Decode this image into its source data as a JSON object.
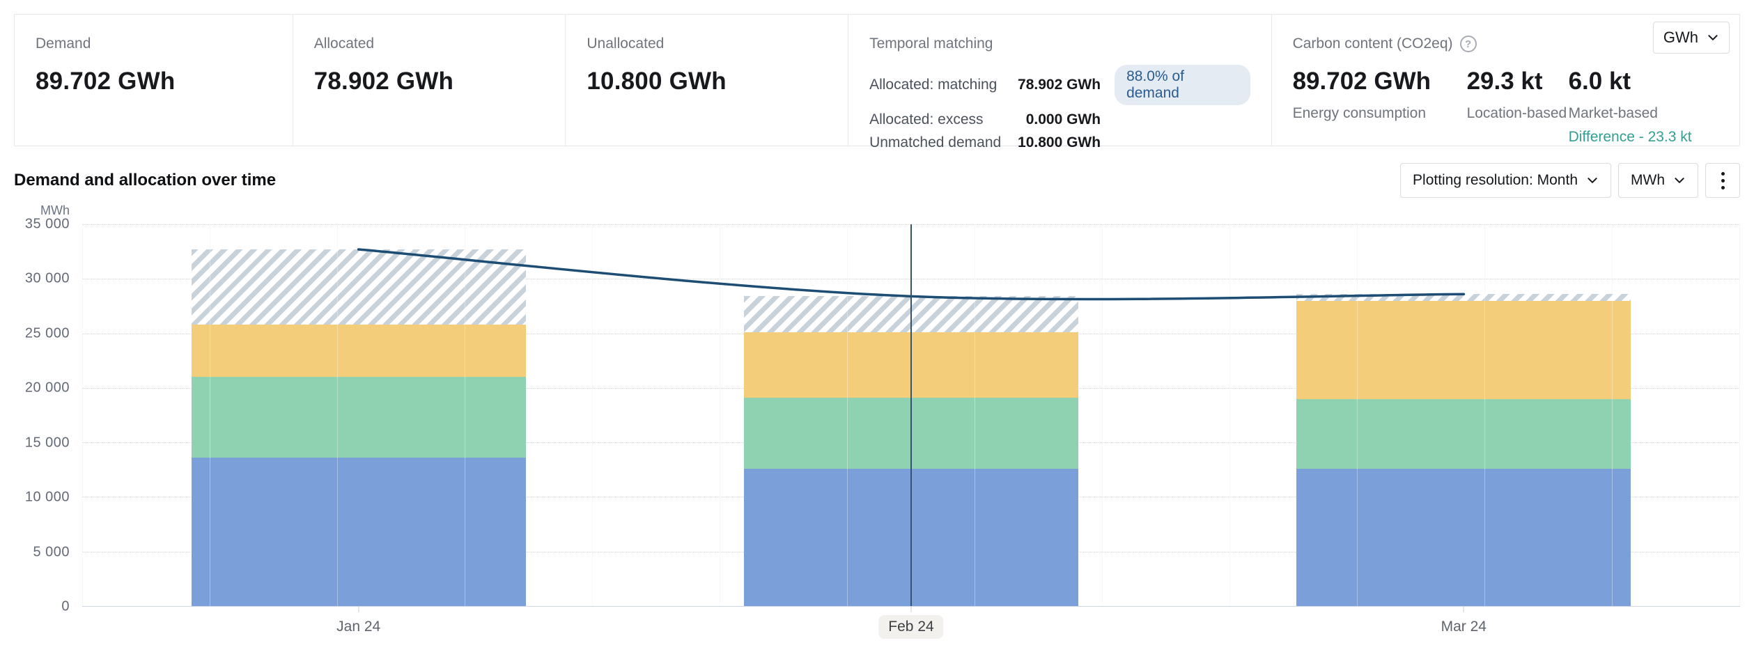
{
  "summary": {
    "demand": {
      "label": "Demand",
      "value": "89.702 GWh"
    },
    "allocated": {
      "label": "Allocated",
      "value": "78.902 GWh"
    },
    "unallocated": {
      "label": "Unallocated",
      "value": "10.800 GWh"
    },
    "temporal": {
      "title": "Temporal matching",
      "rows": [
        {
          "label": "Allocated: matching",
          "value": "78.902 GWh",
          "badge": "88.0% of demand"
        },
        {
          "label": "Allocated: excess",
          "value": "0.000 GWh",
          "badge": ""
        },
        {
          "label": "Unmatched demand",
          "value": "10.800 GWh",
          "badge": ""
        }
      ]
    },
    "carbon": {
      "title": "Carbon content (CO2eq)",
      "help_icon": "question-circle-icon",
      "metrics": [
        {
          "value": "89.702 GWh",
          "label": "Energy consumption"
        },
        {
          "value": "29.3 kt",
          "label": "Location-based"
        },
        {
          "value": "6.0 kt",
          "label": "Market-based"
        }
      ],
      "difference": "Difference - 23.3 kt",
      "difference_color": "#319f92",
      "unit_selector": {
        "value": "GWh",
        "icon": "chevron-down-icon"
      }
    }
  },
  "chart_section": {
    "title": "Demand and allocation over time",
    "controls": {
      "resolution": "Plotting resolution: Month",
      "unit": "MWh",
      "menu_icon": "kebab-menu-icon"
    }
  },
  "chart_data": {
    "type": "bar",
    "stacked": true,
    "title": "Demand and allocation over time",
    "ylabel": "MWh",
    "ylim": [
      0,
      35000
    ],
    "yticks": [
      35000,
      30000,
      25000,
      20000,
      15000,
      10000,
      5000,
      0
    ],
    "ytick_labels": [
      "35 000",
      "30 000",
      "25 000",
      "20 000",
      "15 000",
      "10 000",
      "5 000",
      "0"
    ],
    "grid": "dotted-horizontal",
    "legend": "none",
    "categories": [
      "Jan 24",
      "Feb 24",
      "Mar 24"
    ],
    "series": [
      {
        "name": "allocated-source-1",
        "color": "#7ba0d9",
        "values": [
          13600,
          12600,
          12600
        ]
      },
      {
        "name": "allocated-source-2",
        "color": "#8fd2b1",
        "values": [
          7400,
          6500,
          6400
        ]
      },
      {
        "name": "allocated-source-3",
        "color": "#f4cd7a",
        "values": [
          4800,
          6000,
          9000
        ]
      },
      {
        "name": "unallocated",
        "pattern": "diagonal-hatch",
        "color": "#c8d2da",
        "values": [
          6900,
          3300,
          600
        ]
      }
    ],
    "line_series": {
      "name": "demand",
      "color": "#1d4d74",
      "values": [
        32700,
        28400,
        28600
      ],
      "smooth": true
    },
    "cursor": {
      "category_index": 1,
      "color": "#33536e"
    }
  }
}
